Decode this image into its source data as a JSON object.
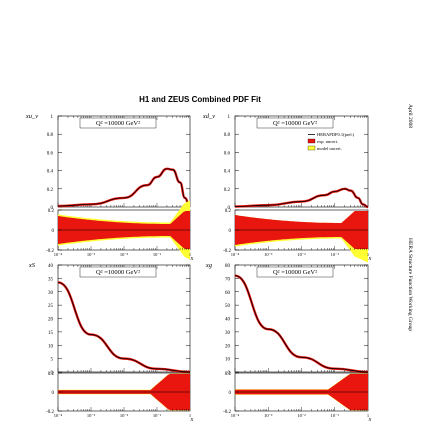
{
  "figure": {
    "title": "H1 and ZEUS Combined PDF Fit",
    "side_text_date": "April 2008",
    "side_text_group": "HERA Structure Function Working Group"
  },
  "chart_data": [
    {
      "type": "line",
      "ylabel": "xu_v",
      "annotation": "Q² =10000 GeV²",
      "x_scale": "log",
      "xlim": [
        0.0001,
        1
      ],
      "ylim": [
        0,
        1
      ],
      "yticks": [
        "0",
        "0.2",
        "0.4",
        "0.6",
        "0.8",
        "1"
      ],
      "x": [
        0.0001,
        0.001,
        0.01,
        0.05,
        0.1,
        0.2,
        0.3,
        0.5,
        0.7,
        1
      ],
      "values": [
        0.01,
        0.03,
        0.1,
        0.24,
        0.33,
        0.42,
        0.41,
        0.27,
        0.1,
        0
      ],
      "ratio_panel": {
        "ylim": [
          -0.2,
          0.2
        ],
        "yticks": [
          "-0.2",
          "0",
          "0.2"
        ],
        "xticks": [
          "10⁻⁴",
          "10⁻³",
          "10⁻²",
          "10⁻¹",
          "1"
        ],
        "xlabel": "x"
      }
    },
    {
      "type": "line",
      "ylabel": "xd_v",
      "annotation": "Q² =10000 GeV²",
      "x_scale": "log",
      "xlim": [
        0.0001,
        1
      ],
      "ylim": [
        0,
        1
      ],
      "yticks": [
        "0",
        "0.2",
        "0.4",
        "0.6",
        "0.8",
        "1"
      ],
      "x": [
        0.0001,
        0.001,
        0.01,
        0.05,
        0.1,
        0.2,
        0.3,
        0.5,
        0.7,
        1
      ],
      "values": [
        0.005,
        0.02,
        0.06,
        0.13,
        0.17,
        0.2,
        0.18,
        0.1,
        0.03,
        0
      ],
      "legend": [
        {
          "label": "HERAPDF0.1(prel.)",
          "color": "#000000"
        },
        {
          "label": "exp. uncert.",
          "color": "#e8160f"
        },
        {
          "label": "model uncert.",
          "color": "#ffff33"
        }
      ],
      "ratio_panel": {
        "ylim": [
          -0.2,
          0.2
        ],
        "yticks": [
          "-0.2",
          "0",
          "0.2"
        ],
        "xticks": [
          "10⁻⁴",
          "10⁻³",
          "10⁻²",
          "10⁻¹",
          "1"
        ],
        "xlabel": "x"
      }
    },
    {
      "type": "line",
      "ylabel": "xS",
      "annotation": "Q² =10000 GeV²",
      "x_scale": "log",
      "xlim": [
        0.0001,
        1
      ],
      "ylim": [
        0,
        40
      ],
      "yticks": [
        "0",
        "5",
        "10",
        "15",
        "20",
        "25",
        "30",
        "35",
        "40"
      ],
      "x": [
        0.0001,
        0.001,
        0.01,
        0.1,
        1
      ],
      "values": [
        33.5,
        14,
        5,
        1.2,
        0
      ],
      "ratio_panel": {
        "ylim": [
          -0.2,
          0.2
        ],
        "yticks": [
          "-0.2",
          "0",
          "0.2"
        ],
        "xticks": [
          "10⁻⁴",
          "10⁻³",
          "10⁻²",
          "10⁻¹",
          "1"
        ],
        "xlabel": "x"
      }
    },
    {
      "type": "line",
      "ylabel": "xg",
      "annotation": "Q² =10000 GeV²",
      "x_scale": "log",
      "xlim": [
        0.0001,
        1
      ],
      "ylim": [
        0,
        80
      ],
      "yticks": [
        "0",
        "10",
        "20",
        "30",
        "40",
        "50",
        "60",
        "70",
        "80"
      ],
      "x": [
        0.0001,
        0.001,
        0.01,
        0.1,
        1
      ],
      "values": [
        72,
        32,
        11,
        2.5,
        0
      ],
      "ratio_panel": {
        "ylim": [
          -0.2,
          0.2
        ],
        "yticks": [
          "-0.2",
          "0",
          "0.2"
        ],
        "xticks": [
          "10⁻⁴",
          "10⁻³",
          "10⁻²",
          "10⁻¹",
          "1"
        ],
        "xlabel": "x"
      }
    }
  ],
  "colors": {
    "exp": "#e8160f",
    "model": "#ffff33",
    "curve": "#000000"
  }
}
